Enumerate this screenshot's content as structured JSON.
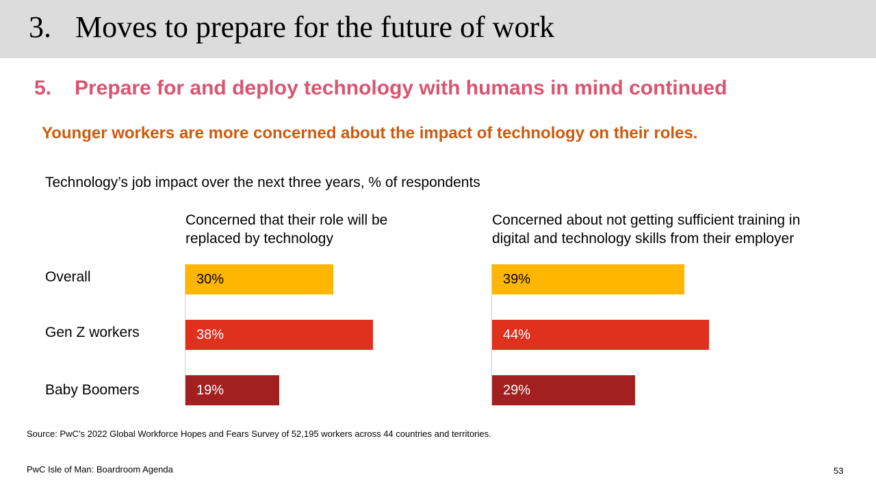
{
  "header": {
    "number": "3.",
    "title": "Moves to prepare for the future of work"
  },
  "section": {
    "number": "5.",
    "title": "Prepare for and deploy technology with humans in mind continued"
  },
  "headline": "Younger workers are more concerned about the impact of technology on their roles.",
  "chart_data": {
    "type": "bar",
    "orientation": "horizontal",
    "title": "Technology’s job impact over the next three years, % of respondents",
    "categories": [
      "Overall",
      "Gen Z workers",
      "Baby Boomers"
    ],
    "colors": [
      "#ffb600",
      "#e0301e",
      "#a32020"
    ],
    "panels": [
      {
        "title": "Concerned that their role will be\nreplaced by technology",
        "values": [
          30,
          38,
          19
        ],
        "labels": [
          "30%",
          "38%",
          "19%"
        ]
      },
      {
        "title": "Concerned about not getting sufficient training in\ndigital and technology skills from their employer",
        "values": [
          39,
          44,
          29
        ],
        "labels": [
          "39%",
          "44%",
          "29%"
        ]
      }
    ]
  },
  "source": "Source: PwC’s 2022 Global Workforce Hopes and Fears Survey of 52,195 workers across 44 countries and territories.",
  "footer": {
    "left": "PwC Isle of Man: Boardroom Agenda",
    "page": "53"
  }
}
